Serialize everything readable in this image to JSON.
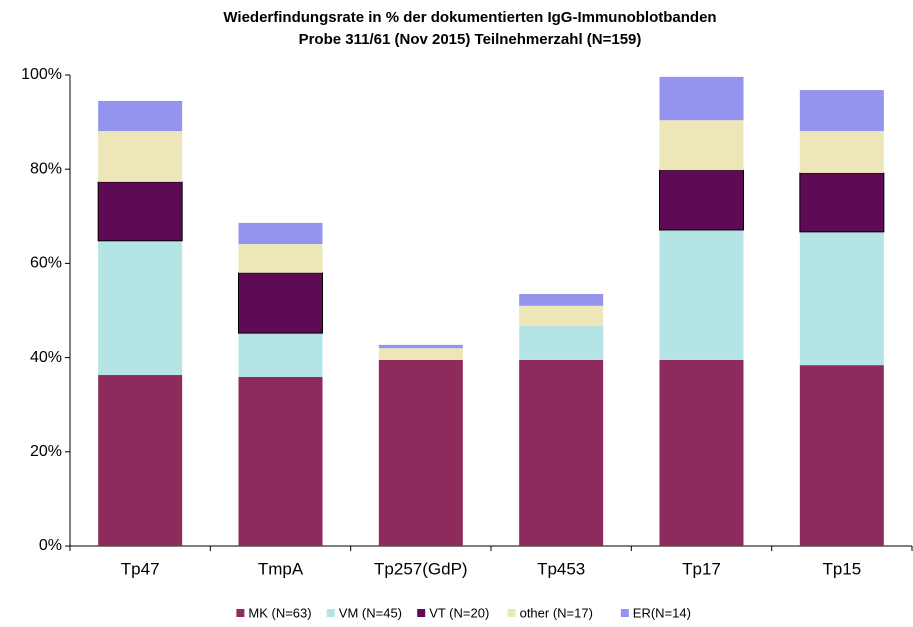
{
  "chart_data": {
    "type": "stacked_bar",
    "title": "Wiederfindungsrate in % der dokumentierten IgG-Immunoblotbanden",
    "subtitle": "Probe 311/61 (Nov 2015) Teilnehmerzahl (N=159)",
    "categories": [
      "Tp47",
      "TmpA",
      "Tp257(GdP)",
      "Tp453",
      "Tp17",
      "Tp15"
    ],
    "series": [
      {
        "name": "MK (N=63)",
        "color": "#8e2a5c",
        "values": [
          36.3,
          35.9,
          39.5,
          39.5,
          39.5,
          38.4
        ]
      },
      {
        "name": "VM (N=45)",
        "color": "#b4e4e4",
        "values": [
          28.5,
          9.3,
          0,
          7.2,
          27.6,
          28.3
        ]
      },
      {
        "name": "VT (N=20)",
        "color": "#5e0a55",
        "values": [
          12.5,
          12.8,
          0,
          0,
          12.7,
          12.5
        ]
      },
      {
        "name": "other (N=17)",
        "color": "#ece6b8",
        "values": [
          10.8,
          6.1,
          2.5,
          4.3,
          10.6,
          8.9
        ]
      },
      {
        "name": "ER(N=14)",
        "color": "#9494ee",
        "values": [
          6.4,
          4.5,
          0.7,
          2.5,
          9.2,
          8.7
        ]
      }
    ],
    "ylim": [
      0,
      100
    ],
    "yticks": [
      {
        "value": 0,
        "label": "0%"
      },
      {
        "value": 20,
        "label": "20%"
      },
      {
        "value": 40,
        "label": "40%"
      },
      {
        "value": 60,
        "label": "60%"
      },
      {
        "value": 80,
        "label": "80%"
      },
      {
        "value": 100,
        "label": "100%"
      }
    ],
    "grid": false,
    "legend": "bottom"
  }
}
